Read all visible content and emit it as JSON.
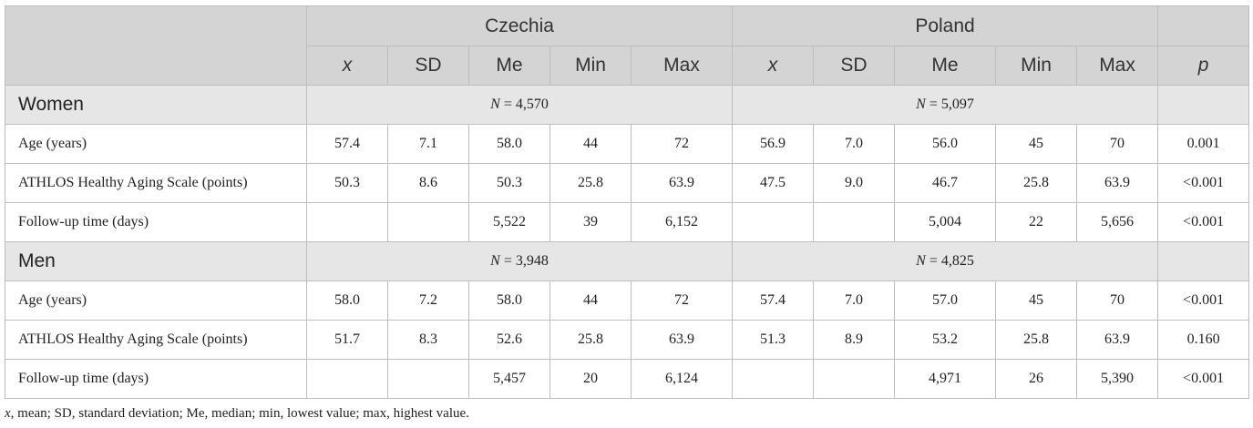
{
  "header": {
    "country1": "Czechia",
    "country2": "Poland",
    "stats": [
      "x",
      "SD",
      "Me",
      "Min",
      "Max"
    ],
    "p": "p"
  },
  "groups": [
    {
      "label": "Women",
      "n_symbol": "N",
      "n_czechia": "= 4,570",
      "n_poland": "= 5,097",
      "rows": [
        {
          "label": "Age (years)",
          "cz": [
            "57.4",
            "7.1",
            "58.0",
            "44",
            "72"
          ],
          "pl": [
            "56.9",
            "7.0",
            "56.0",
            "45",
            "70"
          ],
          "p": "0.001"
        },
        {
          "label": "ATHLOS Healthy Aging Scale (points)",
          "cz": [
            "50.3",
            "8.6",
            "50.3",
            "25.8",
            "63.9"
          ],
          "pl": [
            "47.5",
            "9.0",
            "46.7",
            "25.8",
            "63.9"
          ],
          "p": "<0.001"
        },
        {
          "label": "Follow-up time (days)",
          "cz": [
            "",
            "",
            "5,522",
            "39",
            "6,152"
          ],
          "pl": [
            "",
            "",
            "5,004",
            "22",
            "5,656"
          ],
          "p": "<0.001"
        }
      ]
    },
    {
      "label": "Men",
      "n_symbol": "N",
      "n_czechia": "= 3,948",
      "n_poland": "= 4,825",
      "rows": [
        {
          "label": "Age (years)",
          "cz": [
            "58.0",
            "7.2",
            "58.0",
            "44",
            "72"
          ],
          "pl": [
            "57.4",
            "7.0",
            "57.0",
            "45",
            "70"
          ],
          "p": "<0.001"
        },
        {
          "label": "ATHLOS Healthy Aging Scale (points)",
          "cz": [
            "51.7",
            "8.3",
            "52.6",
            "25.8",
            "63.9"
          ],
          "pl": [
            "51.3",
            "8.9",
            "53.2",
            "25.8",
            "63.9"
          ],
          "p": "0.160"
        },
        {
          "label": "Follow-up time (days)",
          "cz": [
            "",
            "",
            "5,457",
            "20",
            "6,124"
          ],
          "pl": [
            "",
            "",
            "4,971",
            "26",
            "5,390"
          ],
          "p": "<0.001"
        }
      ]
    }
  ],
  "footnote": {
    "x": "x",
    "text": ", mean; SD, standard deviation; Me, median; min, lowest value; max, highest value."
  }
}
